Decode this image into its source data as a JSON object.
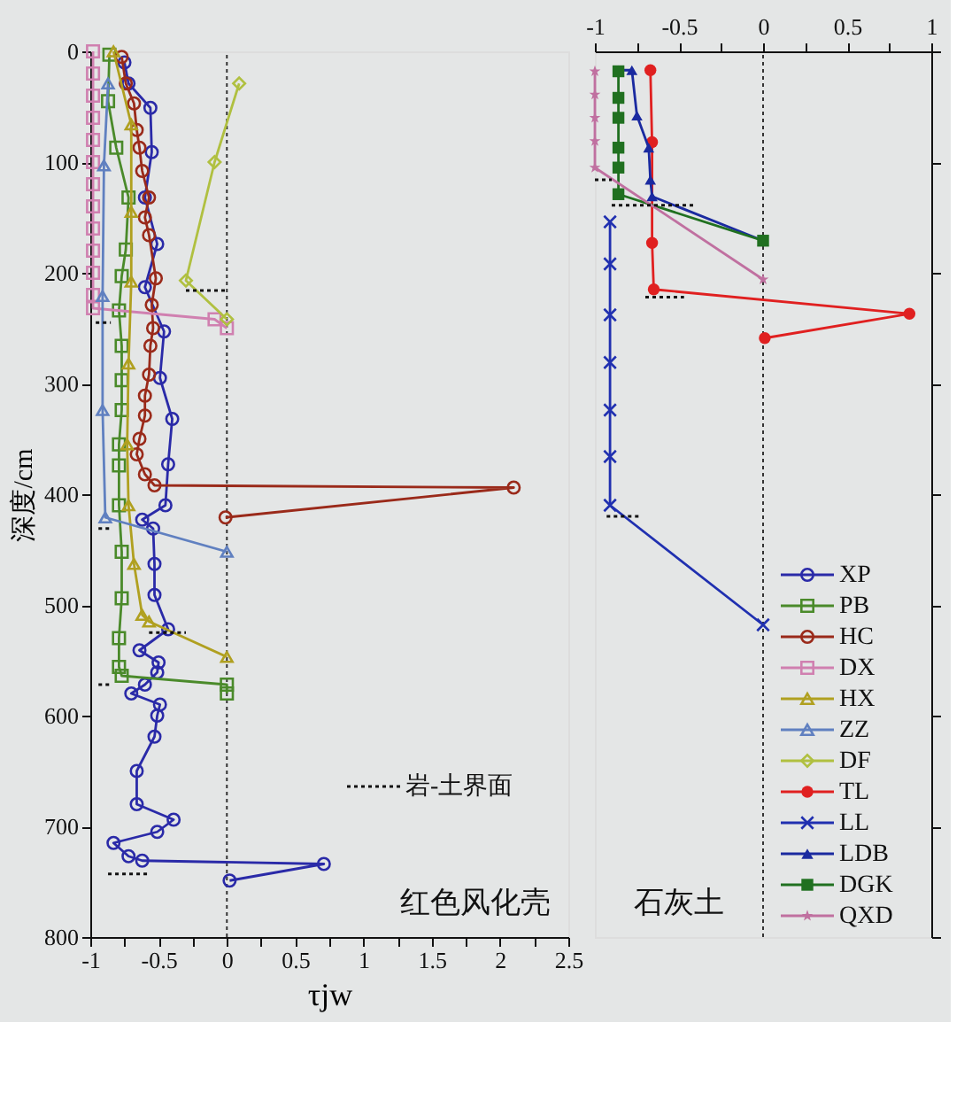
{
  "chart_data": [
    {
      "type": "line",
      "xlabel": "τjw",
      "ylabel": "深度/cm",
      "xlim": [
        -1,
        2.5
      ],
      "xticks": [
        -1,
        {
          "value": -0.75,
          "label": null
        },
        -0.5,
        {
          "value": -0.25,
          "label": null
        },
        0,
        {
          "value": 0.25,
          "label": null
        },
        0.5,
        {
          "value": 0.75,
          "label": null
        },
        1,
        {
          "value": 1.25,
          "label": null
        },
        1.5,
        {
          "value": 1.75,
          "label": null
        },
        2,
        {
          "value": 2.25,
          "label": null
        },
        2.5
      ],
      "ylim": [
        800,
        0
      ],
      "yticks": [
        0,
        100,
        200,
        300,
        400,
        500,
        600,
        700,
        800
      ],
      "grid": false,
      "legend": "bottom right",
      "ref_lines": [
        {
          "axis": "x",
          "value": 0,
          "line_style": "dotted",
          "color": "#333333"
        }
      ],
      "annotations": [
        "红色风化壳"
      ],
      "series": [
        {
          "name": "XP",
          "color": "#2a2aa8",
          "marker": "circle",
          "x": [
            -0.75,
            -0.72,
            -0.56,
            -0.55,
            -0.6,
            -0.51,
            -0.6,
            -0.46,
            -0.49,
            -0.4,
            -0.43,
            -0.45,
            -0.62,
            -0.54,
            -0.53,
            -0.53,
            -0.43,
            -0.64,
            -0.5,
            -0.51,
            -0.6,
            -0.7,
            -0.49,
            -0.51,
            -0.53,
            -0.66,
            -0.66,
            -0.39,
            -0.51,
            -0.83,
            -0.72,
            -0.62,
            0.71,
            0.02
          ],
          "values": [
            10,
            29,
            51,
            91,
            132,
            174,
            213,
            253,
            295,
            332,
            373,
            410,
            423,
            431,
            463,
            491,
            522,
            541,
            552,
            561,
            572,
            580,
            590,
            600,
            619,
            650,
            680,
            694,
            705,
            715,
            727,
            731,
            734,
            749
          ]
        },
        {
          "name": "PB",
          "color": "#4a8a2a",
          "marker": "square",
          "x": [
            -0.86,
            -0.87,
            -0.81,
            -0.72,
            -0.74,
            -0.77,
            -0.79,
            -0.77,
            -0.77,
            -0.77,
            -0.79,
            -0.79,
            -0.79,
            -0.77,
            -0.77,
            -0.79,
            -0.79,
            -0.77,
            0,
            0
          ],
          "values": [
            3,
            45,
            87,
            132,
            179,
            203,
            234,
            266,
            297,
            324,
            355,
            374,
            410,
            452,
            494,
            530,
            556,
            564,
            572,
            580
          ]
        },
        {
          "name": "HC",
          "color": "#9a2a1a",
          "marker": "circle",
          "x": [
            -0.77,
            -0.74,
            -0.68,
            -0.66,
            -0.64,
            -0.62,
            -0.57,
            -0.6,
            -0.57,
            -0.52,
            -0.55,
            -0.54,
            -0.56,
            -0.57,
            -0.6,
            -0.6,
            -0.64,
            -0.66,
            -0.6,
            -0.53,
            2.1,
            -0.01
          ],
          "values": [
            5,
            29,
            47,
            71,
            87,
            108,
            132,
            150,
            166,
            205,
            229,
            250,
            266,
            292,
            311,
            329,
            350,
            364,
            382,
            392,
            394,
            421
          ]
        },
        {
          "name": "DX",
          "color": "#d080b0",
          "marker": "square",
          "x": [
            -0.98,
            -0.98,
            -0.98,
            -0.98,
            -0.98,
            -0.98,
            -0.98,
            -0.98,
            -0.98,
            -0.98,
            -0.98,
            -0.98,
            -0.98,
            -0.09,
            0
          ],
          "values": [
            0,
            20,
            40,
            60,
            80,
            100,
            120,
            140,
            160,
            180,
            200,
            220,
            232,
            242,
            250
          ]
        },
        {
          "name": "HX",
          "color": "#b0a020",
          "marker": "triangle",
          "x": [
            -0.83,
            -0.7,
            -0.7,
            -0.7,
            -0.72,
            -0.73,
            -0.72,
            -0.68,
            -0.62,
            -0.57,
            0
          ],
          "values": [
            0,
            66,
            145,
            208,
            282,
            355,
            410,
            463,
            509,
            515,
            547
          ]
        },
        {
          "name": "ZZ",
          "color": "#6080c0",
          "marker": "triangle",
          "x": [
            -0.87,
            -0.9,
            -0.91,
            -0.91,
            -0.89,
            0
          ],
          "values": [
            29,
            103,
            221,
            324,
            421,
            452
          ]
        },
        {
          "name": "DF",
          "color": "#b0c040",
          "marker": "diamond",
          "x": [
            0.09,
            -0.09,
            -0.3,
            0
          ],
          "values": [
            29,
            100,
            207,
            242
          ]
        },
        {
          "name": "岩-土界面",
          "color": "#111111",
          "marker": "none",
          "line_style": "dotted",
          "x": [
            -0.3,
            0
          ],
          "values": [
            216,
            216
          ]
        },
        {
          "color": "#111111",
          "marker": "none",
          "line_style": "dotted",
          "x": [
            -0.96,
            -0.85
          ],
          "values": [
            245,
            245
          ]
        },
        {
          "color": "#111111",
          "marker": "none",
          "line_style": "dotted",
          "x": [
            -0.94,
            -0.85
          ],
          "values": [
            431,
            431
          ]
        },
        {
          "color": "#111111",
          "marker": "none",
          "line_style": "dotted",
          "x": [
            -0.57,
            -0.3
          ],
          "values": [
            525,
            525
          ]
        },
        {
          "color": "#111111",
          "marker": "none",
          "line_style": "dotted",
          "x": [
            -0.94,
            -0.85
          ],
          "values": [
            572,
            572
          ]
        },
        {
          "color": "#111111",
          "marker": "none",
          "line_style": "dotted",
          "x": [
            -0.87,
            -0.57
          ],
          "values": [
            743,
            743
          ]
        }
      ]
    },
    {
      "type": "line",
      "xlim": [
        -1,
        1
      ],
      "xticks": [
        -1,
        {
          "value": -0.75,
          "label": null
        },
        -0.5,
        {
          "value": -0.25,
          "label": null
        },
        0,
        {
          "value": 0.25,
          "label": null
        },
        0.5,
        {
          "value": 0.75,
          "label": null
        },
        1
      ],
      "ylim": [
        800,
        0
      ],
      "yticks": [
        {
          "value": 0,
          "label": null
        },
        {
          "value": 100,
          "label": null
        },
        {
          "value": 200,
          "label": null
        },
        {
          "value": 300,
          "label": null
        },
        {
          "value": 400,
          "label": null
        },
        {
          "value": 500,
          "label": null
        },
        {
          "value": 600,
          "label": null
        },
        {
          "value": 700,
          "label": null
        },
        {
          "value": 800,
          "label": null
        }
      ],
      "tick_labels": "x",
      "grid": false,
      "legend": "bottom right",
      "ref_lines": [
        {
          "axis": "x",
          "value": 0,
          "line_style": "dotted",
          "color": "#333333"
        }
      ],
      "annotations": [
        "石灰土"
      ],
      "series": [
        {
          "name": "TL",
          "color": "#e02020",
          "marker": "circle",
          "x": [
            -0.67,
            -0.66,
            -0.66,
            -0.65,
            0.87,
            0.01
          ],
          "values": [
            17,
            82,
            173,
            215,
            237,
            259
          ]
        },
        {
          "name": "LL",
          "color": "#2030b0",
          "marker": "cross",
          "x": [
            -0.91,
            -0.91,
            -0.91,
            -0.91,
            -0.91,
            -0.91,
            -0.91,
            0
          ],
          "values": [
            154,
            192,
            238,
            281,
            324,
            366,
            410,
            518
          ]
        },
        {
          "name": "LDB",
          "color": "#1a2aa0",
          "marker": "triangle",
          "x": [
            -0.86,
            -0.78,
            -0.75,
            -0.68,
            -0.67,
            -0.66,
            0
          ],
          "values": [
            17,
            17,
            58,
            87,
            116,
            131,
            171
          ]
        },
        {
          "name": "DGK",
          "color": "#207020",
          "marker": "square",
          "x": [
            -0.86,
            -0.86,
            -0.86,
            -0.86,
            -0.86,
            -0.86,
            0
          ],
          "values": [
            18,
            42,
            60,
            87,
            105,
            129,
            171
          ]
        },
        {
          "name": "QXD",
          "color": "#c070a0",
          "marker": "star",
          "x": [
            -1,
            -1,
            -1,
            -1,
            -1,
            0
          ],
          "values": [
            18,
            39,
            60,
            81,
            105,
            206
          ]
        },
        {
          "color": "#111111",
          "marker": "none",
          "line_style": "dotted",
          "x": [
            -1,
            -0.9
          ],
          "values": [
            116,
            116
          ]
        },
        {
          "color": "#111111",
          "marker": "none",
          "line_style": "dotted",
          "x": [
            -0.9,
            -0.4
          ],
          "values": [
            139,
            139
          ]
        },
        {
          "color": "#111111",
          "marker": "none",
          "line_style": "dotted",
          "x": [
            -0.7,
            -0.47
          ],
          "values": [
            222,
            222
          ]
        },
        {
          "color": "#111111",
          "marker": "none",
          "line_style": "dotted",
          "x": [
            -0.93,
            -0.72
          ],
          "values": [
            420,
            420
          ]
        }
      ]
    }
  ]
}
